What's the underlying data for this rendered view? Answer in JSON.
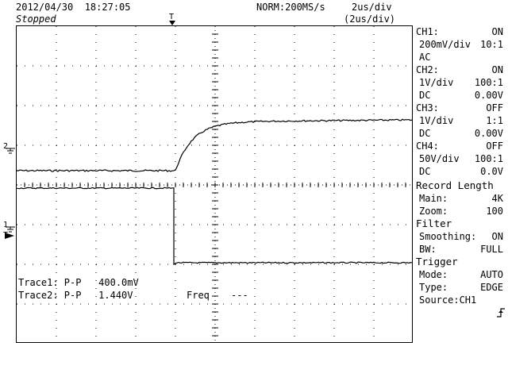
{
  "header": {
    "datetime": "2012/04/30  18:27:05",
    "status": "Stopped",
    "acq_mode": "NORM:200MS/s",
    "timebase": "2us/div",
    "timebase_zoom": "(2us/div)"
  },
  "markers": {
    "trigger_top": "T",
    "ch2_marker": "2",
    "ch1_marker": "1",
    "trigger_level": "T"
  },
  "measurements": {
    "trace1": "Trace1: P-P   400.0mV",
    "trace2": "Trace2: P-P   1.440V",
    "freq_label": "Freq",
    "freq_value": "---"
  },
  "channels": [
    {
      "name": "CH1:",
      "state": "ON",
      "scale": "200mV/div",
      "probe": "10:1",
      "coupling": "AC",
      "offset": ""
    },
    {
      "name": "CH2:",
      "state": "ON",
      "scale": "1V/div",
      "probe": "100:1",
      "coupling": "DC",
      "offset": "0.00V"
    },
    {
      "name": "CH3:",
      "state": "OFF",
      "scale": "1V/div",
      "probe": "1:1",
      "coupling": "DC",
      "offset": "0.00V"
    },
    {
      "name": "CH4:",
      "state": "OFF",
      "scale": "50V/div",
      "probe": "100:1",
      "coupling": "DC",
      "offset": "0.0V"
    }
  ],
  "record": {
    "title": "Record Length",
    "main_label": "Main:",
    "main_value": "4K",
    "zoom_label": "Zoom:",
    "zoom_value": "100"
  },
  "filter": {
    "title": "Filter",
    "smoothing_label": "Smoothing:",
    "smoothing_value": "ON",
    "bw_label": "BW:",
    "bw_value": "FULL"
  },
  "trigger": {
    "title": "Trigger",
    "mode_label": "Mode:",
    "mode_value": "AUTO",
    "type_label": "Type:",
    "type_value": "EDGE",
    "source_label": "Source:",
    "source_value": "CH1",
    "slope_icon": "rising-edge-icon"
  }
}
